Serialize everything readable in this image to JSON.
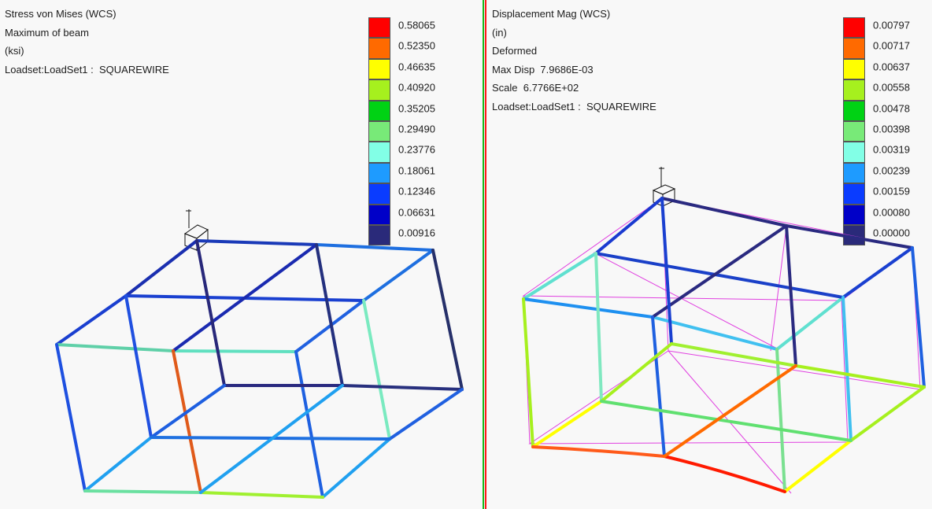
{
  "left": {
    "info_lines": [
      "Stress von Mises (WCS)",
      "Maximum of beam",
      "(ksi)",
      "Loadset:LoadSet1 :  SQUAREWIRE"
    ],
    "legend_values": [
      "0.58065",
      "0.52350",
      "0.46635",
      "0.40920",
      "0.35205",
      "0.29490",
      "0.23776",
      "0.18061",
      "0.12346",
      "0.06631",
      "0.00916"
    ]
  },
  "right": {
    "info_lines": [
      "Displacement Mag (WCS)",
      "(in)",
      "Deformed",
      "Max Disp  7.9686E-03",
      "Scale  6.7766E+02",
      "Loadset:LoadSet1 :  SQUAREWIRE"
    ],
    "legend_values": [
      "0.00797",
      "0.00717",
      "0.00637",
      "0.00558",
      "0.00478",
      "0.00398",
      "0.00319",
      "0.00239",
      "0.00159",
      "0.00080",
      "0.00000"
    ]
  },
  "legend_colors": [
    "#ff0000",
    "#ff6a00",
    "#ffff00",
    "#a6f01e",
    "#00d214",
    "#78ea78",
    "#82ffe6",
    "#1e9bff",
    "#0a3cff",
    "#0000c8",
    "#2a2a7a"
  ],
  "colors": {
    "divider_left": "#1ab81a",
    "divider_right": "#ff1a1a",
    "undeformed": "#e040e0"
  }
}
